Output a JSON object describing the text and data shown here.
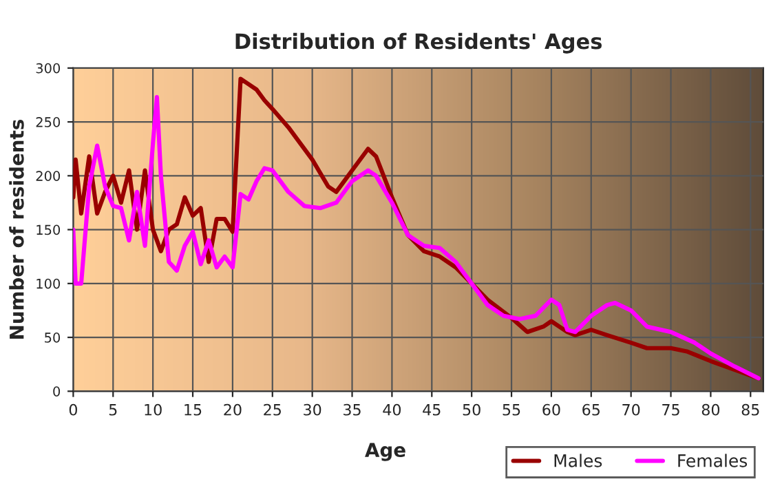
{
  "chart_data": {
    "type": "line",
    "title": "Distribution of Residents' Ages",
    "xlabel": "Age",
    "ylabel": "Number of residents",
    "xlim": [
      0,
      86.6
    ],
    "xticks": [
      0,
      5,
      10,
      15,
      20,
      25,
      30,
      35,
      40,
      45,
      50,
      55,
      60,
      65,
      70,
      75,
      80,
      85
    ],
    "ylim": [
      0,
      300
    ],
    "yticks": [
      0,
      50,
      100,
      150,
      200,
      250,
      300
    ],
    "grid": true,
    "legend": "bottom right",
    "marker": "none",
    "line_style": "solid",
    "series": [
      {
        "name": "Males",
        "color": "#990000",
        "x": [
          0,
          0.3,
          1,
          2,
          3,
          4,
          5,
          6,
          7,
          8,
          9,
          10,
          11,
          12,
          13,
          14,
          15,
          16,
          17,
          18,
          19,
          20,
          21,
          22,
          23,
          24,
          25,
          27,
          30,
          32,
          33,
          35,
          37,
          38,
          40,
          42,
          44,
          46,
          48,
          50,
          52,
          55,
          57,
          59,
          60,
          62,
          63,
          65,
          67,
          70,
          72,
          75,
          77,
          80,
          83,
          86
        ],
        "values": [
          180,
          215,
          165,
          218,
          165,
          185,
          200,
          175,
          205,
          150,
          205,
          150,
          130,
          150,
          155,
          180,
          163,
          170,
          120,
          160,
          160,
          148,
          290,
          285,
          280,
          270,
          262,
          245,
          215,
          190,
          185,
          205,
          225,
          218,
          180,
          145,
          130,
          125,
          115,
          100,
          85,
          68,
          55,
          60,
          65,
          55,
          52,
          57,
          52,
          45,
          40,
          40,
          37,
          28,
          20,
          12
        ]
      },
      {
        "name": "Females",
        "color": "#ff00ff",
        "x": [
          0,
          0.3,
          1,
          2,
          3,
          4,
          5,
          6,
          7,
          8,
          9,
          10,
          10.5,
          11,
          12,
          13,
          14,
          15,
          16,
          17,
          18,
          19,
          20,
          21,
          22,
          23,
          24,
          25,
          27,
          29,
          31,
          33,
          35,
          37,
          38,
          40,
          42,
          44,
          46,
          48,
          50,
          52,
          54,
          56,
          58,
          60,
          61,
          62,
          63,
          65,
          67,
          68,
          70,
          72,
          75,
          78,
          80,
          83,
          86
        ],
        "values": [
          150,
          100,
          100,
          190,
          228,
          190,
          172,
          170,
          140,
          185,
          135,
          230,
          273,
          200,
          120,
          112,
          135,
          148,
          118,
          140,
          115,
          125,
          115,
          183,
          178,
          195,
          207,
          205,
          185,
          172,
          170,
          175,
          195,
          205,
          200,
          175,
          145,
          135,
          133,
          120,
          100,
          80,
          70,
          67,
          70,
          85,
          80,
          57,
          55,
          70,
          80,
          82,
          75,
          60,
          55,
          45,
          35,
          23,
          12
        ]
      }
    ]
  }
}
